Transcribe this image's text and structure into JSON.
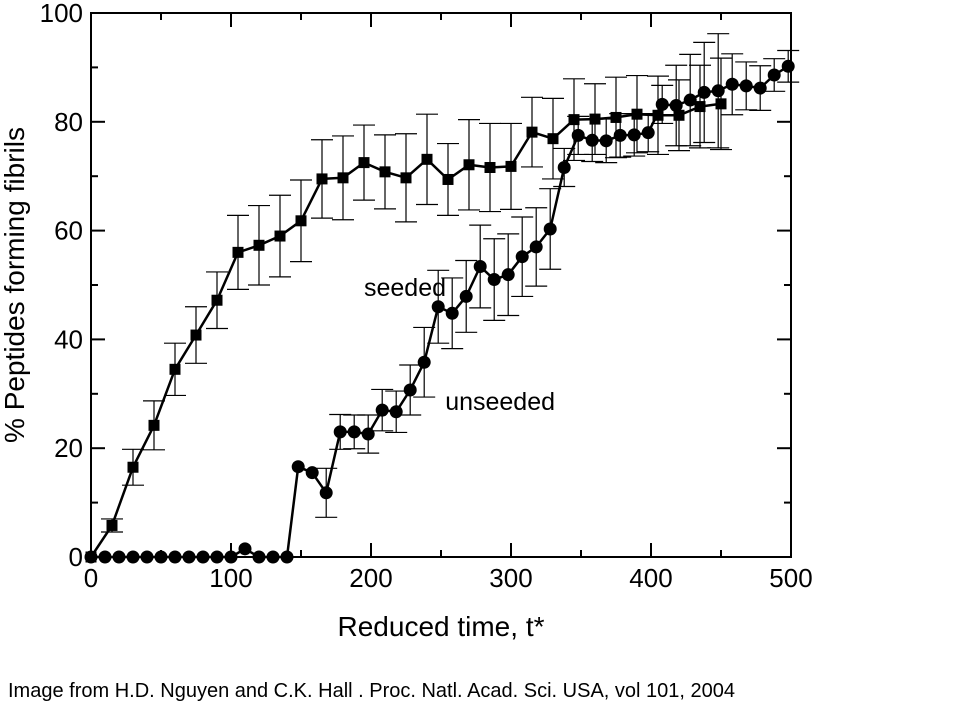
{
  "chart_data": {
    "type": "line",
    "title": "",
    "xlabel": "Reduced time, t*",
    "ylabel": "% Peptides forming fibrils",
    "xlim": [
      0,
      500
    ],
    "ylim": [
      0,
      100
    ],
    "xticks": [
      0,
      100,
      200,
      300,
      400,
      500
    ],
    "yticks": [
      0,
      20,
      40,
      60,
      80,
      100
    ],
    "grid": false,
    "annotations": [
      {
        "text": "seeded",
        "x": 195,
        "y": 48
      },
      {
        "text": "unseeded",
        "x": 253,
        "y": 27
      }
    ],
    "series": [
      {
        "name": "seeded",
        "marker": "square",
        "x": [
          0,
          15,
          30,
          45,
          60,
          75,
          90,
          105,
          120,
          135,
          150,
          165,
          180,
          195,
          210,
          225,
          240,
          255,
          270,
          285,
          300,
          315,
          330,
          345,
          360,
          375,
          390,
          405,
          420,
          435,
          450
        ],
        "y": [
          0,
          5.8,
          16.5,
          24.2,
          34.5,
          40.8,
          47.2,
          56,
          57.3,
          59,
          61.8,
          69.5,
          69.7,
          72.5,
          70.8,
          69.7,
          73.1,
          69.4,
          72.1,
          71.6,
          71.8,
          78.1,
          76.9,
          80.4,
          80.5,
          80.8,
          81.4,
          81.2,
          81.2,
          82.8,
          83.3
        ],
        "error": [
          0,
          1.2,
          3.3,
          4.5,
          4.8,
          5.2,
          5.2,
          6.8,
          7.3,
          7.5,
          7.5,
          7.2,
          7.7,
          6.9,
          6.8,
          8.1,
          8.3,
          6.6,
          8.3,
          8.1,
          7.9,
          6.4,
          7.4,
          7.5,
          6.5,
          7.4,
          7.1,
          7.2,
          6.5,
          7.6,
          8.4
        ]
      },
      {
        "name": "unseeded",
        "marker": "circle",
        "x": [
          0,
          10,
          20,
          30,
          40,
          50,
          60,
          70,
          80,
          90,
          100,
          110,
          120,
          130,
          140,
          148,
          158,
          168,
          178,
          188,
          198,
          208,
          218,
          228,
          238,
          248,
          258,
          268,
          278,
          288,
          298,
          308,
          318,
          328,
          338,
          348,
          358,
          368,
          378,
          388,
          398,
          408,
          418,
          428,
          438,
          448,
          458,
          468,
          478,
          488,
          498
        ],
        "y": [
          0,
          0,
          0,
          0,
          0,
          0,
          0,
          0,
          0,
          0,
          0,
          1.5,
          0,
          0,
          0,
          16.6,
          15.5,
          11.8,
          23,
          23,
          22.6,
          27,
          26.7,
          30.7,
          35.8,
          46,
          44.8,
          47.9,
          53.4,
          51,
          51.9,
          55.2,
          57,
          60.3,
          71.6,
          77.5,
          76.6,
          76.5,
          77.5,
          77.6,
          78,
          83.2,
          83,
          84,
          85.4,
          85.7,
          86.9,
          86.6,
          86.2,
          88.6,
          90.2
        ],
        "error": [
          0,
          0,
          0,
          0,
          0,
          0,
          0,
          0,
          0,
          0,
          0,
          0,
          0,
          0,
          0,
          0,
          0,
          4.5,
          3.2,
          3.1,
          3.5,
          3.8,
          3.8,
          4.6,
          6.4,
          6.7,
          6.5,
          6.6,
          7.6,
          7.5,
          7.5,
          7.3,
          7.2,
          7.4,
          3.5,
          3.5,
          3.9,
          4,
          4,
          3.9,
          3.5,
          3.5,
          7.4,
          8.4,
          9.2,
          10.5,
          5.6,
          4.4,
          4.1,
          3,
          2.9
        ]
      }
    ]
  },
  "caption": "Image from H.D. Nguyen and C.K. Hall . Proc. Natl. Acad. Sci. USA, vol 101, 2004"
}
